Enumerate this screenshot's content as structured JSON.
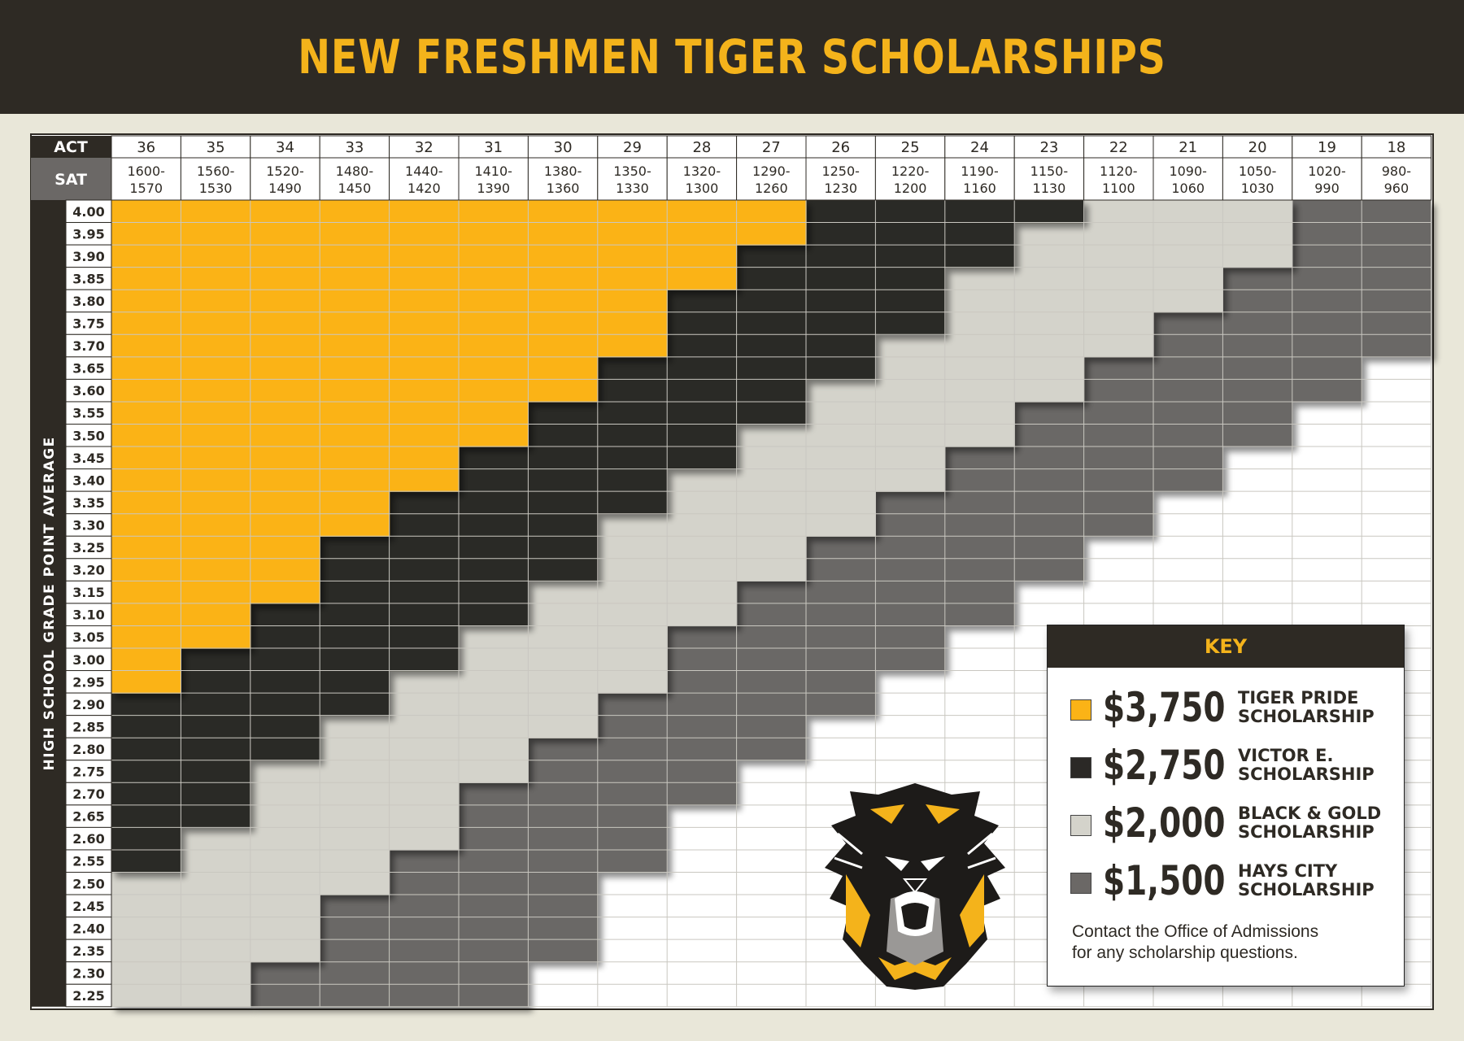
{
  "title": "NEW FRESHMEN TIGER SCHOLARSHIPS",
  "colors": {
    "banner": "#2e2a24",
    "title": "#f4b31b",
    "page_bg": "#e9e7d9",
    "tier_3750": "#fbb316",
    "tier_2750": "#2b2926",
    "tier_2000": "#d4d3cb",
    "tier_1500": "#6b6866",
    "none": "#ffffff"
  },
  "key": {
    "title": "KEY",
    "items": [
      {
        "amount": "$3,750",
        "label_line1": "TIGER PRIDE",
        "label_line2": "SCHOLARSHIP",
        "color": "#fbb316"
      },
      {
        "amount": "$2,750",
        "label_line1": "VICTOR E.",
        "label_line2": "SCHOLARSHIP",
        "color": "#2b2926"
      },
      {
        "amount": "$2,000",
        "label_line1": "BLACK & GOLD",
        "label_line2": "SCHOLARSHIP",
        "color": "#d4d3cb"
      },
      {
        "amount": "$1,500",
        "label_line1": "HAYS CITY",
        "label_line2": "SCHOLARSHIP",
        "color": "#6b6866"
      }
    ],
    "note_line1": "Contact the Office of Admissions",
    "note_line2": "for any scholarship questions."
  },
  "logo": "tiger-logo-icon",
  "chart_data": {
    "type": "table",
    "row_header_label": "HIGH SCHOOL GRADE POINT AVERAGE",
    "act_label": "ACT",
    "sat_label": "SAT",
    "act": [
      "36",
      "35",
      "34",
      "33",
      "32",
      "31",
      "30",
      "29",
      "28",
      "27",
      "26",
      "25",
      "24",
      "23",
      "22",
      "21",
      "20",
      "19",
      "18"
    ],
    "sat": [
      [
        "1600-",
        "1570"
      ],
      [
        "1560-",
        "1530"
      ],
      [
        "1520-",
        "1490"
      ],
      [
        "1480-",
        "1450"
      ],
      [
        "1440-",
        "1420"
      ],
      [
        "1410-",
        "1390"
      ],
      [
        "1380-",
        "1360"
      ],
      [
        "1350-",
        "1330"
      ],
      [
        "1320-",
        "1300"
      ],
      [
        "1290-",
        "1260"
      ],
      [
        "1250-",
        "1230"
      ],
      [
        "1220-",
        "1200"
      ],
      [
        "1190-",
        "1160"
      ],
      [
        "1150-",
        "1130"
      ],
      [
        "1120-",
        "1100"
      ],
      [
        "1090-",
        "1060"
      ],
      [
        "1050-",
        "1030"
      ],
      [
        "1020-",
        "990"
      ],
      [
        "980-",
        "960"
      ]
    ],
    "gpa": [
      "4.00",
      "3.95",
      "3.90",
      "3.85",
      "3.80",
      "3.75",
      "3.70",
      "3.65",
      "3.60",
      "3.55",
      "3.50",
      "3.45",
      "3.40",
      "3.35",
      "3.30",
      "3.25",
      "3.20",
      "3.15",
      "3.10",
      "3.05",
      "3.00",
      "2.95",
      "2.90",
      "2.85",
      "2.80",
      "2.75",
      "2.70",
      "2.65",
      "2.60",
      "2.55",
      "2.50",
      "2.45",
      "2.40",
      "2.35",
      "2.30",
      "2.25"
    ],
    "tiers": [
      "none",
      "$1,500",
      "$2,000",
      "$2,750",
      "$3,750"
    ],
    "cells": [
      [
        4,
        4,
        4,
        4,
        4,
        4,
        4,
        4,
        4,
        4,
        3,
        3,
        3,
        3,
        2,
        2,
        2,
        1,
        1
      ],
      [
        4,
        4,
        4,
        4,
        4,
        4,
        4,
        4,
        4,
        4,
        3,
        3,
        3,
        2,
        2,
        2,
        2,
        1,
        1
      ],
      [
        4,
        4,
        4,
        4,
        4,
        4,
        4,
        4,
        4,
        3,
        3,
        3,
        3,
        2,
        2,
        2,
        2,
        1,
        1
      ],
      [
        4,
        4,
        4,
        4,
        4,
        4,
        4,
        4,
        4,
        3,
        3,
        3,
        2,
        2,
        2,
        2,
        1,
        1,
        1
      ],
      [
        4,
        4,
        4,
        4,
        4,
        4,
        4,
        4,
        3,
        3,
        3,
        3,
        2,
        2,
        2,
        2,
        1,
        1,
        1
      ],
      [
        4,
        4,
        4,
        4,
        4,
        4,
        4,
        4,
        3,
        3,
        3,
        3,
        2,
        2,
        2,
        1,
        1,
        1,
        1
      ],
      [
        4,
        4,
        4,
        4,
        4,
        4,
        4,
        4,
        3,
        3,
        3,
        2,
        2,
        2,
        2,
        1,
        1,
        1,
        1
      ],
      [
        4,
        4,
        4,
        4,
        4,
        4,
        4,
        3,
        3,
        3,
        3,
        2,
        2,
        2,
        1,
        1,
        1,
        1,
        0
      ],
      [
        4,
        4,
        4,
        4,
        4,
        4,
        4,
        3,
        3,
        3,
        2,
        2,
        2,
        2,
        1,
        1,
        1,
        1,
        0
      ],
      [
        4,
        4,
        4,
        4,
        4,
        4,
        3,
        3,
        3,
        3,
        2,
        2,
        2,
        1,
        1,
        1,
        1,
        0,
        0
      ],
      [
        4,
        4,
        4,
        4,
        4,
        4,
        3,
        3,
        3,
        2,
        2,
        2,
        2,
        1,
        1,
        1,
        1,
        0,
        0
      ],
      [
        4,
        4,
        4,
        4,
        4,
        3,
        3,
        3,
        3,
        2,
        2,
        2,
        1,
        1,
        1,
        1,
        0,
        0,
        0
      ],
      [
        4,
        4,
        4,
        4,
        4,
        3,
        3,
        3,
        2,
        2,
        2,
        2,
        1,
        1,
        1,
        1,
        0,
        0,
        0
      ],
      [
        4,
        4,
        4,
        4,
        3,
        3,
        3,
        3,
        2,
        2,
        2,
        1,
        1,
        1,
        1,
        0,
        0,
        0,
        0
      ],
      [
        4,
        4,
        4,
        4,
        3,
        3,
        3,
        2,
        2,
        2,
        2,
        1,
        1,
        1,
        1,
        0,
        0,
        0,
        0
      ],
      [
        4,
        4,
        4,
        3,
        3,
        3,
        3,
        2,
        2,
        2,
        1,
        1,
        1,
        1,
        0,
        0,
        0,
        0,
        0
      ],
      [
        4,
        4,
        4,
        3,
        3,
        3,
        3,
        2,
        2,
        2,
        1,
        1,
        1,
        1,
        0,
        0,
        0,
        0,
        0
      ],
      [
        4,
        4,
        4,
        3,
        3,
        3,
        2,
        2,
        2,
        1,
        1,
        1,
        1,
        0,
        0,
        0,
        0,
        0,
        0
      ],
      [
        4,
        4,
        3,
        3,
        3,
        3,
        2,
        2,
        2,
        1,
        1,
        1,
        1,
        0,
        0,
        0,
        0,
        0,
        0
      ],
      [
        4,
        4,
        3,
        3,
        3,
        2,
        2,
        2,
        1,
        1,
        1,
        1,
        0,
        0,
        0,
        0,
        0,
        0,
        0
      ],
      [
        4,
        3,
        3,
        3,
        3,
        2,
        2,
        2,
        1,
        1,
        1,
        1,
        0,
        0,
        0,
        0,
        0,
        0,
        0
      ],
      [
        4,
        3,
        3,
        3,
        2,
        2,
        2,
        2,
        1,
        1,
        1,
        0,
        0,
        0,
        0,
        0,
        0,
        0,
        0
      ],
      [
        3,
        3,
        3,
        3,
        2,
        2,
        2,
        1,
        1,
        1,
        1,
        0,
        0,
        0,
        0,
        0,
        0,
        0,
        0
      ],
      [
        3,
        3,
        3,
        2,
        2,
        2,
        2,
        1,
        1,
        1,
        0,
        0,
        0,
        0,
        0,
        0,
        0,
        0,
        0
      ],
      [
        3,
        3,
        3,
        2,
        2,
        2,
        1,
        1,
        1,
        1,
        0,
        0,
        0,
        0,
        0,
        0,
        0,
        0,
        0
      ],
      [
        3,
        3,
        2,
        2,
        2,
        2,
        1,
        1,
        1,
        0,
        0,
        0,
        0,
        0,
        0,
        0,
        0,
        0,
        0
      ],
      [
        3,
        3,
        2,
        2,
        2,
        1,
        1,
        1,
        1,
        0,
        0,
        0,
        0,
        0,
        0,
        0,
        0,
        0,
        0
      ],
      [
        3,
        3,
        2,
        2,
        2,
        1,
        1,
        1,
        0,
        0,
        0,
        0,
        0,
        0,
        0,
        0,
        0,
        0,
        0
      ],
      [
        3,
        2,
        2,
        2,
        2,
        1,
        1,
        1,
        0,
        0,
        0,
        0,
        0,
        0,
        0,
        0,
        0,
        0,
        0
      ],
      [
        3,
        2,
        2,
        2,
        1,
        1,
        1,
        1,
        0,
        0,
        0,
        0,
        0,
        0,
        0,
        0,
        0,
        0,
        0
      ],
      [
        2,
        2,
        2,
        2,
        1,
        1,
        1,
        0,
        0,
        0,
        0,
        0,
        0,
        0,
        0,
        0,
        0,
        0,
        0
      ],
      [
        2,
        2,
        2,
        1,
        1,
        1,
        1,
        0,
        0,
        0,
        0,
        0,
        0,
        0,
        0,
        0,
        0,
        0,
        0
      ],
      [
        2,
        2,
        2,
        1,
        1,
        1,
        1,
        0,
        0,
        0,
        0,
        0,
        0,
        0,
        0,
        0,
        0,
        0,
        0
      ],
      [
        2,
        2,
        2,
        1,
        1,
        1,
        1,
        0,
        0,
        0,
        0,
        0,
        0,
        0,
        0,
        0,
        0,
        0,
        0
      ],
      [
        2,
        2,
        1,
        1,
        1,
        1,
        0,
        0,
        0,
        0,
        0,
        0,
        0,
        0,
        0,
        0,
        0,
        0,
        0
      ],
      [
        2,
        2,
        1,
        1,
        1,
        1,
        0,
        0,
        0,
        0,
        0,
        0,
        0,
        0,
        0,
        0,
        0,
        0,
        0
      ]
    ]
  }
}
